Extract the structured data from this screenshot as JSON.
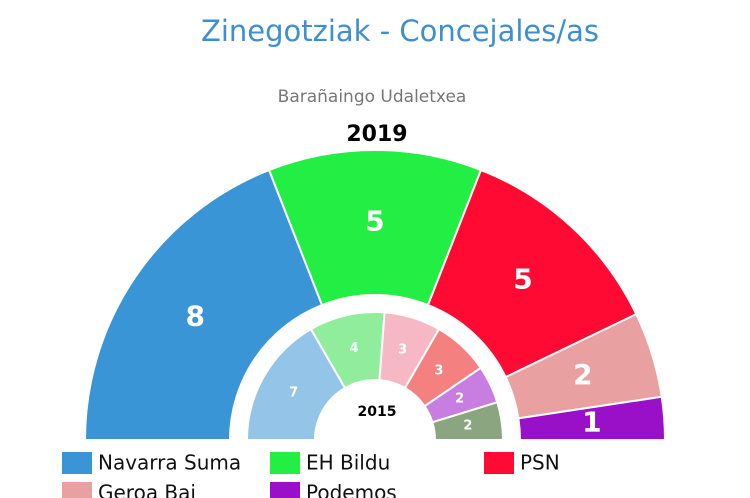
{
  "chart_data": {
    "type": "semi-donut",
    "title": "Zinegotziak - Concejales/as",
    "subtitle": "Barañaingo Udaletxea",
    "series": [
      {
        "name": "2019",
        "values": [
          8,
          5,
          5,
          2,
          1
        ],
        "colors": [
          "#3a95d6",
          "#22ee44",
          "#ff0a33",
          "#e9a0a0",
          "#9a10c8"
        ]
      },
      {
        "name": "2015",
        "values": [
          7,
          4,
          3,
          3,
          2,
          2
        ],
        "colors": [
          "#94c4e8",
          "#8fed9b",
          "#f5b8c4",
          "#f48080",
          "#c87ee0",
          "#8aa57f"
        ]
      }
    ],
    "legend": [
      {
        "name": "Navarra Suma",
        "color": "#3a95d6"
      },
      {
        "name": "EH Bildu",
        "color": "#22ee44"
      },
      {
        "name": "PSN",
        "color": "#ff0a33"
      },
      {
        "name": "Geroa Bai",
        "color": "#e9a0a0"
      },
      {
        "name": "Podemos",
        "color": "#9a10c8"
      }
    ]
  }
}
